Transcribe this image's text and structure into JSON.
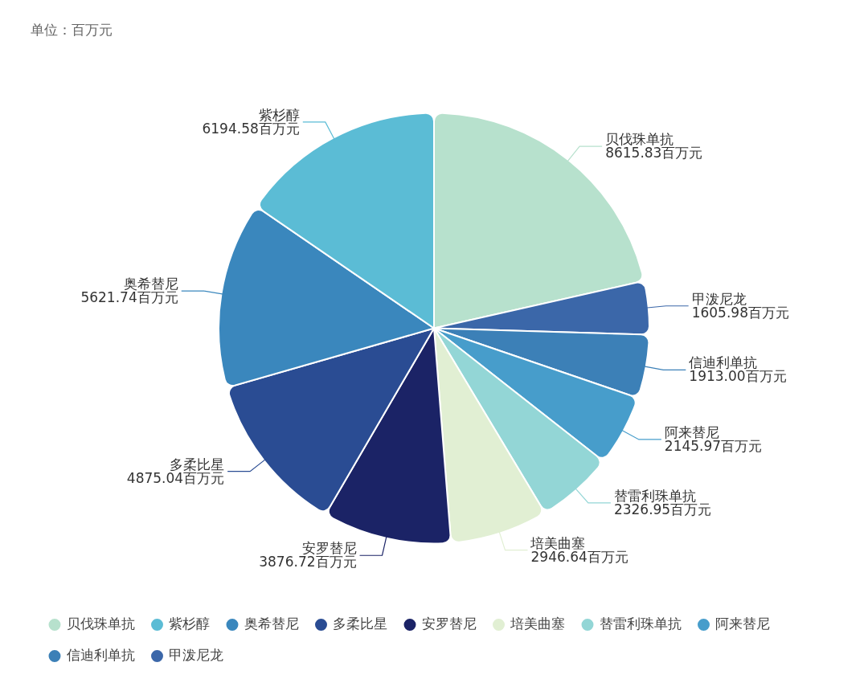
{
  "chart_data": {
    "type": "pie",
    "annotations": [
      "单位：百万元"
    ],
    "categories": [
      "贝伐珠单抗",
      "甲泼尼龙",
      "信迪利单抗",
      "阿来替尼",
      "替雷利珠单抗",
      "培美曲塞",
      "安罗替尼",
      "多柔比星",
      "奥希替尼",
      "紫杉醇"
    ],
    "values": [
      8615.83,
      1605.98,
      1913.0,
      2145.97,
      2326.95,
      2946.64,
      3876.72,
      4875.04,
      5621.74,
      6194.58
    ],
    "value_labels": [
      "8615.83百万元",
      "1605.98百万元",
      "1913.00百万元",
      "2145.97百万元",
      "2326.95百万元",
      "2946.64百万元",
      "3876.72百万元",
      "4875.04百万元",
      "5621.74百万元",
      "6194.58百万元"
    ],
    "colors": [
      "#b7e1cd",
      "#3b67a9",
      "#3c80b7",
      "#479dcb",
      "#93d6d6",
      "#e1efd3",
      "#1b2366",
      "#2a4c93",
      "#3a87bd",
      "#5bbcd5"
    ],
    "legend": "bottom"
  }
}
